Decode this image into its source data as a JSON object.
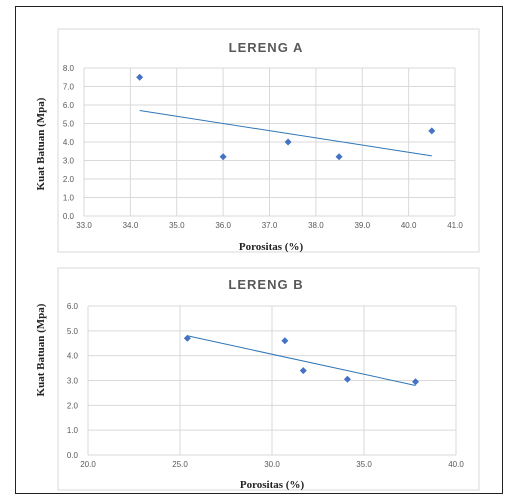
{
  "chart_data": [
    {
      "type": "scatter",
      "title": "LERENG A",
      "xlabel": "Porositas (%)",
      "ylabel": "Kuat Batuan (Mpa)",
      "xlim": [
        33.0,
        41.0
      ],
      "ylim": [
        0.0,
        8.0
      ],
      "x_ticks": [
        "33.0",
        "34.0",
        "35.0",
        "36.0",
        "37.0",
        "38.0",
        "39.0",
        "40.0",
        "41.0"
      ],
      "y_ticks": [
        "0.0",
        "1.0",
        "2.0",
        "3.0",
        "4.0",
        "5.0",
        "6.0",
        "7.0",
        "8.0"
      ],
      "grid": true,
      "points": [
        {
          "x": 34.2,
          "y": 7.5
        },
        {
          "x": 36.0,
          "y": 3.2
        },
        {
          "x": 37.4,
          "y": 4.0
        },
        {
          "x": 38.5,
          "y": 3.2
        },
        {
          "x": 40.5,
          "y": 4.6
        }
      ],
      "trendline": {
        "x": [
          34.2,
          40.5
        ],
        "y": [
          5.7,
          3.25
        ]
      },
      "marker_color": "#4472c4",
      "trend_color": "#2e75b6"
    },
    {
      "type": "scatter",
      "title": "LERENG B",
      "xlabel": "Porositas (%)",
      "ylabel": "Kuat Batuan (Mpa)",
      "xlim": [
        20.0,
        40.0
      ],
      "ylim": [
        0.0,
        6.0
      ],
      "x_ticks": [
        "20.0",
        "25.0",
        "30.0",
        "35.0",
        "40.0"
      ],
      "y_ticks": [
        "0.0",
        "1.0",
        "2.0",
        "3.0",
        "4.0",
        "5.0",
        "6.0"
      ],
      "grid": true,
      "points": [
        {
          "x": 25.4,
          "y": 4.7
        },
        {
          "x": 30.7,
          "y": 4.6
        },
        {
          "x": 31.7,
          "y": 3.4
        },
        {
          "x": 34.1,
          "y": 3.05
        },
        {
          "x": 37.8,
          "y": 2.95
        }
      ],
      "trendline": {
        "x": [
          25.4,
          37.8
        ],
        "y": [
          4.8,
          2.8
        ]
      },
      "marker_color": "#4472c4",
      "trend_color": "#2e75b6"
    }
  ]
}
